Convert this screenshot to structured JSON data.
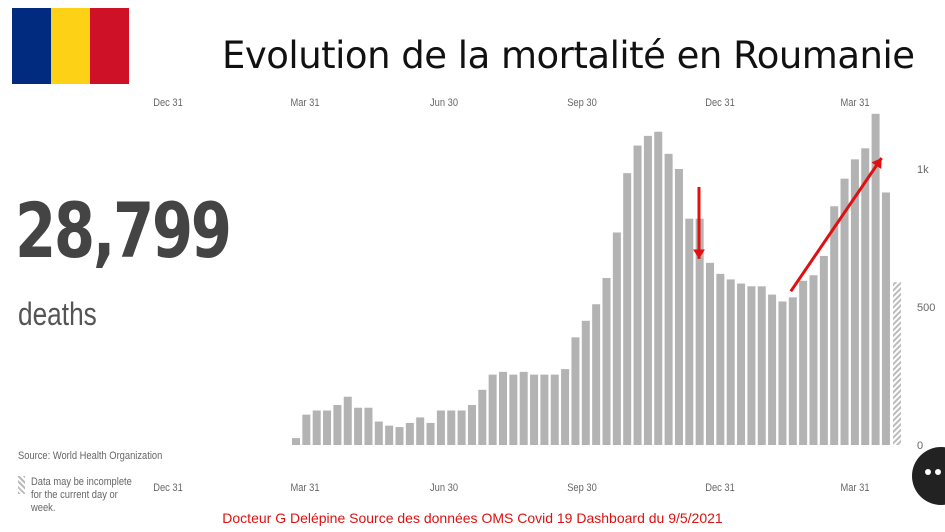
{
  "flag": {
    "colors": [
      "#002b7f",
      "#fcd116",
      "#ce1126"
    ]
  },
  "title": "Evolution de la mortalité en Roumanie",
  "summary": {
    "total": "28,799",
    "label": "deaths"
  },
  "source": "Source: World Health Organization",
  "incomplete_note": "Data may be incomplete for the current day or week.",
  "footer": "Docteur G Delépine Source des données OMS Covid 19 Dashboard du 9/5/2021",
  "chart_data": {
    "type": "bar",
    "x_ticks": [
      "Dec 31",
      "Mar 31",
      "Jun 30",
      "Sep 30",
      "Dec 31",
      "Mar 31"
    ],
    "y_ticks": [
      "0",
      "500",
      "1k"
    ],
    "ylim": [
      0,
      1250
    ],
    "bar_color": "#b3b3b3",
    "annotation_color": "#e01010",
    "values": [
      25,
      110,
      125,
      125,
      145,
      175,
      135,
      135,
      85,
      70,
      65,
      80,
      100,
      80,
      125,
      125,
      125,
      145,
      200,
      255,
      265,
      255,
      265,
      255,
      255,
      255,
      275,
      390,
      450,
      510,
      605,
      770,
      985,
      1085,
      1120,
      1135,
      1055,
      1000,
      820,
      820,
      660,
      620,
      600,
      585,
      575,
      575,
      545,
      520,
      535,
      595,
      615,
      685,
      865,
      965,
      1035,
      1075,
      1200,
      915
    ],
    "incomplete_value": 590,
    "annotations": [
      {
        "type": "down-arrow",
        "at_bar": 40
      },
      {
        "type": "up-arrow",
        "from_bar": 48,
        "to_bar": 56
      }
    ]
  }
}
